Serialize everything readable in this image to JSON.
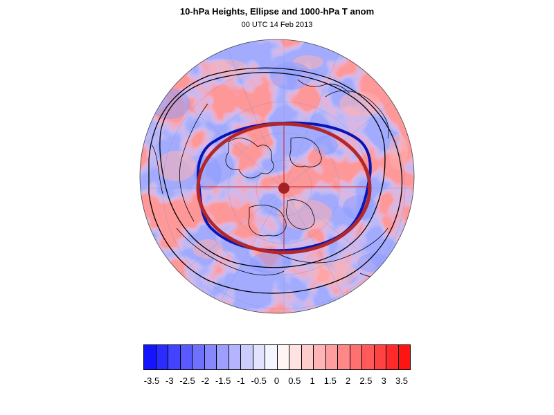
{
  "title": "10-hPa Heights, Ellipse and 1000-hPa T anom",
  "subtitle": "00 UTC 14 Feb 2013",
  "colors": {
    "ellipse_fit": "#b3272b",
    "height_contour": "#0a14b4",
    "center_marker": "#a52024",
    "coastline": "#000000"
  },
  "map": {
    "projection": "polar-stereographic",
    "hemisphere": "northern",
    "layers": [
      "1000-hPa temperature anomaly shading",
      "10-hPa geopotential height contour",
      "fitted ellipse",
      "ellipse axes",
      "ellipse center"
    ]
  },
  "colorbar": {
    "colors": [
      "#1414ff",
      "#2b2bff",
      "#4242ff",
      "#5959ff",
      "#7070ff",
      "#8787ff",
      "#9e9eff",
      "#b5b5ff",
      "#ccccff",
      "#e3e3ff",
      "#f5f5ff",
      "#fff5f5",
      "#ffe3e3",
      "#ffcccc",
      "#ffb5b5",
      "#ff9e9e",
      "#ff8787",
      "#ff7070",
      "#ff5959",
      "#ff4242",
      "#ff2b2b",
      "#ff1414"
    ],
    "labels": [
      "-3.5",
      "-3",
      "-2.5",
      "-2",
      "-1.5",
      "-1",
      "-0.5",
      "0",
      "0.5",
      "1",
      "1.5",
      "2",
      "2.5",
      "3",
      "3.5"
    ]
  }
}
